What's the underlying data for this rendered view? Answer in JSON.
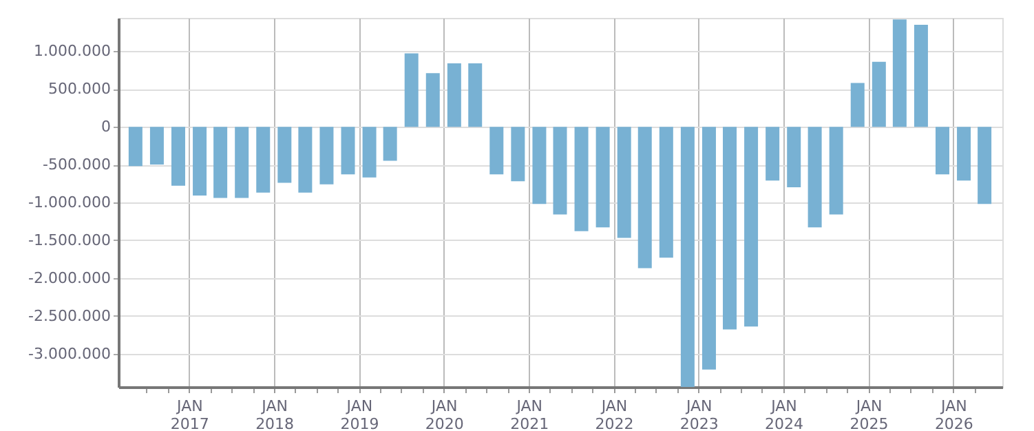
{
  "chart_data": {
    "type": "bar",
    "x": [
      "2016-05-15",
      "2016-08-15",
      "2016-11-15",
      "2017-02-15",
      "2017-05-15",
      "2017-08-15",
      "2017-11-15",
      "2018-02-15",
      "2018-05-15",
      "2018-08-15",
      "2018-11-15",
      "2019-02-15",
      "2019-05-15",
      "2019-08-15",
      "2019-11-15",
      "2020-02-15",
      "2020-05-15",
      "2020-08-15",
      "2020-11-15",
      "2021-02-15",
      "2021-05-15",
      "2021-08-15",
      "2021-11-15",
      "2022-02-15",
      "2022-05-15",
      "2022-08-15",
      "2022-11-15",
      "2023-02-15",
      "2023-05-15",
      "2023-08-15",
      "2023-11-15",
      "2024-02-15",
      "2024-05-15",
      "2024-08-15",
      "2024-11-15",
      "2025-02-15",
      "2025-05-15",
      "2025-08-15",
      "2025-11-15",
      "2026-02-15",
      "2026-05-15"
    ],
    "values": [
      -520000,
      -500000,
      -780000,
      -910000,
      -940000,
      -940000,
      -870000,
      -740000,
      -870000,
      -760000,
      -630000,
      -670000,
      -450000,
      970000,
      710000,
      840000,
      840000,
      -630000,
      -720000,
      -1020000,
      -1160000,
      -1380000,
      -1330000,
      -1470000,
      -1870000,
      -1730000,
      -3440000,
      -3210000,
      -2680000,
      -2640000,
      -710000,
      -800000,
      -1330000,
      -1160000,
      580000,
      860000,
      1420000,
      1350000,
      -630000,
      -710000,
      -1020000
    ],
    "color": "#78b1d3",
    "xlim": [
      "2016-04-01",
      "2026-07-01"
    ],
    "xticks": [
      {
        "value": "2016-07-01",
        "label": null
      },
      {
        "value": "2016-10-01",
        "label": null
      },
      {
        "value": "2017-01-01",
        "label": "JAN 2017"
      },
      {
        "value": "2017-04-01",
        "label": null
      },
      {
        "value": "2017-07-01",
        "label": null
      },
      {
        "value": "2017-10-01",
        "label": null
      },
      {
        "value": "2018-01-01",
        "label": "JAN 2018"
      },
      {
        "value": "2018-04-01",
        "label": null
      },
      {
        "value": "2018-07-01",
        "label": null
      },
      {
        "value": "2018-10-01",
        "label": null
      },
      {
        "value": "2019-01-01",
        "label": "JAN 2019"
      },
      {
        "value": "2019-04-01",
        "label": null
      },
      {
        "value": "2019-07-01",
        "label": null
      },
      {
        "value": "2019-10-01",
        "label": null
      },
      {
        "value": "2020-01-01",
        "label": "JAN 2020"
      },
      {
        "value": "2020-04-01",
        "label": null
      },
      {
        "value": "2020-07-01",
        "label": null
      },
      {
        "value": "2020-10-01",
        "label": null
      },
      {
        "value": "2021-01-01",
        "label": "JAN 2021"
      },
      {
        "value": "2021-04-01",
        "label": null
      },
      {
        "value": "2021-07-01",
        "label": null
      },
      {
        "value": "2021-10-01",
        "label": null
      },
      {
        "value": "2022-01-01",
        "label": "JAN 2022"
      },
      {
        "value": "2022-04-01",
        "label": null
      },
      {
        "value": "2022-07-01",
        "label": null
      },
      {
        "value": "2022-10-01",
        "label": null
      },
      {
        "value": "2023-01-01",
        "label": "JAN 2023"
      },
      {
        "value": "2023-04-01",
        "label": null
      },
      {
        "value": "2023-07-01",
        "label": null
      },
      {
        "value": "2023-10-01",
        "label": null
      },
      {
        "value": "2024-01-01",
        "label": "JAN 2024"
      },
      {
        "value": "2024-04-01",
        "label": null
      },
      {
        "value": "2024-07-01",
        "label": null
      },
      {
        "value": "2024-10-01",
        "label": null
      },
      {
        "value": "2025-01-01",
        "label": "JAN 2025"
      },
      {
        "value": "2025-04-01",
        "label": null
      },
      {
        "value": "2025-07-01",
        "label": null
      },
      {
        "value": "2025-10-01",
        "label": null
      },
      {
        "value": "2026-01-01",
        "label": "JAN 2026"
      },
      {
        "value": "2026-04-01",
        "label": null
      }
    ],
    "ylim": [
      -3440000,
      1440000
    ],
    "yticks": [
      {
        "value": -3000000,
        "label": "-3.000.000"
      },
      {
        "value": -2500000,
        "label": "-2.500.000"
      },
      {
        "value": -2000000,
        "label": "-2.000.000"
      },
      {
        "value": -1500000,
        "label": "-1.500.000"
      },
      {
        "value": -1000000,
        "label": "-1.000.000"
      },
      {
        "value": -500000,
        "label": "-500.000"
      },
      {
        "value": 0,
        "label": "0"
      },
      {
        "value": 500000,
        "label": "500.000"
      },
      {
        "value": 1000000,
        "label": "1.000.000"
      }
    ],
    "grid": true
  }
}
